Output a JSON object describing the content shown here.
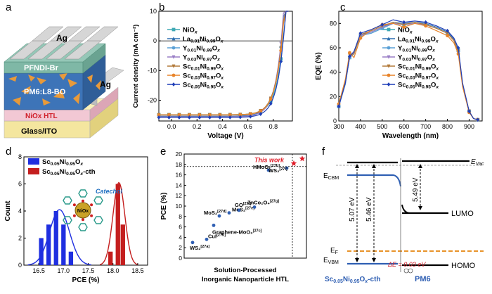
{
  "panels": {
    "a": "a",
    "b": "b",
    "c": "c",
    "d": "d",
    "e": "e",
    "f": "f"
  },
  "device": {
    "layers": [
      "Ag",
      "PFNDI-Br",
      "PM6:L8-BO",
      "Ag",
      "NiOx HTL",
      "Glass/ITO"
    ],
    "colors": {
      "ag": "#c9c9c9",
      "pfndi": "#7fb8a6",
      "active": "#3d74b8",
      "nio": "#f2c8d4",
      "glass": "#f4e69f",
      "fibers": "#e89a3a"
    }
  },
  "chart_data": [
    {
      "panel": "b",
      "type": "line",
      "xlabel": "Voltage (V)",
      "ylabel": "Current density (mA cm⁻²)",
      "xlim": [
        -0.1,
        0.95
      ],
      "ylim": [
        -27,
        10
      ],
      "xticks": [
        "0.0",
        "0.2",
        "0.4",
        "0.6",
        "0.8"
      ],
      "yticks": [
        "10",
        "0",
        "-10",
        "-20"
      ],
      "voc": [
        0.876,
        0.864,
        0.865,
        0.862,
        0.866,
        0.868,
        0.878
      ],
      "jsc": [
        -24.9,
        -25.4,
        -25.0,
        -25.6,
        -24.9,
        -25.0,
        -25.8
      ],
      "series": [
        {
          "name": "NiOx",
          "color": "#3fa9b4",
          "marker": "s"
        },
        {
          "name": "La0.01Ni0.99Ox",
          "color": "#2e6fb0",
          "marker": "^"
        },
        {
          "name": "Y0.01Ni0.99Ox",
          "color": "#5aa0d6",
          "marker": "o"
        },
        {
          "name": "Y0.03Ni0.97Ox",
          "color": "#9a7fc6",
          "marker": "v"
        },
        {
          "name": "Sc0.01Ni0.99Ox",
          "color": "#b27a3a",
          "marker": "v"
        },
        {
          "name": "Sc0.03Ni0.97Ox",
          "color": "#e8842a",
          "marker": "o"
        },
        {
          "name": "Sc0.05Ni0.95Ox",
          "color": "#1f3fb8",
          "marker": "D"
        }
      ]
    },
    {
      "panel": "c",
      "type": "line",
      "xlabel": "Wavelength (nm)",
      "ylabel": "EQE (%)",
      "xlim": [
        300,
        960
      ],
      "ylim": [
        0,
        90
      ],
      "xticks": [
        "300",
        "400",
        "500",
        "600",
        "700",
        "800",
        "900"
      ],
      "yticks": [
        "0",
        "20",
        "40",
        "60",
        "80"
      ],
      "x": [
        300,
        330,
        350,
        370,
        400,
        450,
        500,
        550,
        600,
        650,
        700,
        750,
        800,
        830,
        850,
        870,
        900,
        920,
        940
      ],
      "series": [
        {
          "name": "NiOx",
          "color": "#3fa9b4",
          "marker": "s",
          "values": [
            12,
            30,
            52,
            55,
            70,
            72,
            76,
            80,
            79,
            80,
            79,
            76,
            72,
            66,
            58,
            30,
            8,
            2,
            1
          ]
        },
        {
          "name": "La0.01Ni0.99Ox",
          "color": "#2e6fb0",
          "marker": "^",
          "values": [
            12,
            31,
            53,
            56,
            71,
            73,
            77,
            81,
            80,
            81,
            80,
            77,
            73,
            67,
            58,
            30,
            8,
            2,
            1
          ]
        },
        {
          "name": "Y0.01Ni0.99Ox",
          "color": "#5aa0d6",
          "marker": "o",
          "values": [
            12,
            30,
            52,
            55,
            70,
            72,
            76,
            80,
            79,
            80,
            79,
            76,
            72,
            66,
            57,
            29,
            8,
            2,
            1
          ]
        },
        {
          "name": "Y0.03Ni0.97Ox",
          "color": "#9a7fc6",
          "marker": "v",
          "values": [
            12,
            31,
            52,
            56,
            70,
            73,
            77,
            80,
            79,
            80,
            79,
            76,
            72,
            66,
            57,
            30,
            8,
            2,
            1
          ]
        },
        {
          "name": "Sc0.01Ni0.99Ox",
          "color": "#b27a3a",
          "marker": "v",
          "values": [
            13,
            32,
            54,
            55,
            71,
            74,
            78,
            81,
            79,
            81,
            79,
            76,
            72,
            66,
            57,
            29,
            8,
            2,
            1
          ]
        },
        {
          "name": "Sc0.03Ni0.97Ox",
          "color": "#e8842a",
          "marker": "o",
          "values": [
            14,
            34,
            56,
            52,
            68,
            75,
            79,
            80,
            77,
            80,
            78,
            74,
            70,
            64,
            55,
            28,
            7,
            2,
            1
          ]
        },
        {
          "name": "Sc0.05Ni0.95Ox",
          "color": "#1f3fb8",
          "marker": "D",
          "values": [
            12,
            31,
            53,
            57,
            72,
            75,
            79,
            83,
            81,
            82,
            81,
            78,
            74,
            68,
            60,
            31,
            8,
            2,
            1
          ]
        }
      ]
    },
    {
      "panel": "d",
      "type": "bar",
      "xlabel": "PCE (%)",
      "ylabel": "Count",
      "xlim": [
        16.2,
        18.7
      ],
      "ylim": [
        0,
        8
      ],
      "xticks": [
        "16.5",
        "17.0",
        "17.5",
        "18.0",
        "18.5"
      ],
      "yticks": [
        "0",
        "2",
        "4",
        "6",
        "8"
      ],
      "annotation": "Catechol",
      "series": [
        {
          "name": "Sc0.05Ni0.95Ox",
          "color": "#1f2fe0",
          "x": [
            16.55,
            16.7,
            16.85,
            17.0,
            17.15
          ],
          "values": [
            2,
            3,
            4,
            3,
            1
          ],
          "fit_mu": 16.92,
          "fit_sigma": 0.2
        },
        {
          "name": "Sc0.05Ni0.95Ox-cth",
          "color": "#c41e1e",
          "x": [
            17.95,
            18.1,
            18.2
          ],
          "values": [
            1,
            6,
            3
          ],
          "fit_mu": 18.12,
          "fit_sigma": 0.12
        }
      ]
    },
    {
      "panel": "e",
      "type": "scatter",
      "xlabel_line1": "Solution-Processed",
      "xlabel_line2": "Inorganic Nanoparticle HTL",
      "ylabel": "PCE (%)",
      "ylim": [
        0,
        20
      ],
      "yticks": [
        "0",
        "2",
        "4",
        "6",
        "8",
        "10",
        "12",
        "14",
        "16",
        "18",
        "20"
      ],
      "highlight": "This work",
      "points": [
        {
          "label": "WS₂",
          "ref": "[27a]",
          "y": 3.0
        },
        {
          "label": "CuI",
          "ref": "[27b]",
          "y": 3.6
        },
        {
          "label": "Graphene-MoO₃",
          "ref": "[27c]",
          "y": 6.3
        },
        {
          "label": "MoS₂",
          "ref": "[27d]",
          "y": 8.1
        },
        {
          "label": "MoS₂",
          "ref": "[27e]",
          "y": 8.7
        },
        {
          "label": "GO",
          "ref": "[27f]",
          "y": 9.2
        },
        {
          "label": "ZnCo₂O₄",
          "ref": "[27g]",
          "y": 9.8
        },
        {
          "label": "HMoOₓ",
          "ref": "[27h]",
          "y": 16.9
        },
        {
          "label": "WS₂",
          "ref": "[27i]",
          "y": 17.3
        },
        {
          "label": "This work",
          "ref": "",
          "y": 18.2
        },
        {
          "label": "This work",
          "ref": "",
          "y": 19.1
        }
      ]
    }
  ],
  "energy": {
    "evac": "E_Vac",
    "ecbm": "E_CBM",
    "ef": "E_F",
    "evbm": "E_VBM",
    "lumo": "LUMO",
    "homo": "HOMO",
    "gap1": "5.07 eV",
    "gap2": "5.46 eV",
    "gap3": "5.49 eV",
    "offset": "ΔE = 0.03 eV",
    "left_label": "Sc0.05Ni0.95Ox-cth",
    "right_label": "PM6",
    "left_color": "#2f5fb3",
    "right_color": "#2f5fb3",
    "fermi_color": "#e8932a",
    "offset_color": "#d0202a"
  }
}
